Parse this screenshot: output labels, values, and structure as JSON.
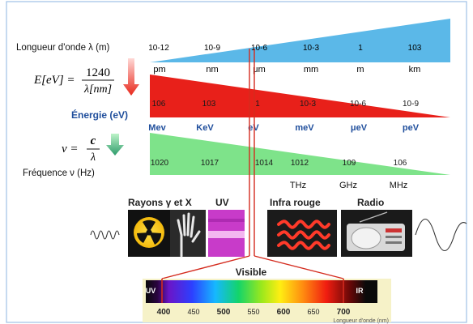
{
  "wavelength": {
    "label": "Longueur d'onde λ (m)",
    "exponents": [
      "10-12",
      "10-9",
      "10-6",
      "10-3",
      "1",
      "103"
    ],
    "units": [
      "pm",
      "nm",
      "μm",
      "mm",
      "m",
      "km"
    ]
  },
  "energy": {
    "formula_lhs": "E[eV] =",
    "formula_num": "1240",
    "formula_den": "λ[nm]",
    "label": "Énergie (eV)",
    "values": [
      "106",
      "103",
      "1",
      "10-3",
      "10-6",
      "10-9"
    ],
    "units": [
      "Mev",
      "KeV",
      "eV",
      "meV",
      "μeV",
      "peV"
    ]
  },
  "frequency": {
    "formula_lhs": "ν =",
    "formula_num": "c",
    "formula_den": "λ",
    "label": "Fréquence ν (Hz)",
    "values": [
      "1020",
      "1017",
      "1014",
      "1012",
      "109",
      "106"
    ],
    "units": [
      "THz",
      "GHz",
      "MHz"
    ]
  },
  "bands": {
    "gamma_x": "Rayons γ et X",
    "uv": "UV",
    "ir": "Infra rouge",
    "radio": "Radio"
  },
  "visible": {
    "title": "Visible",
    "uv_label": "UV",
    "ir_label": "IR",
    "ticks": [
      "400",
      "450",
      "500",
      "550",
      "600",
      "650",
      "700"
    ],
    "axis_label": "Longueur d'onde (nm)"
  },
  "colors": {
    "wavelength_band": "#5bb8e8",
    "energy_band": "#e8201a",
    "frequency_band": "#7ee38a",
    "energy_label": "#1f4e9c",
    "connector_line": "#d42b1e"
  }
}
